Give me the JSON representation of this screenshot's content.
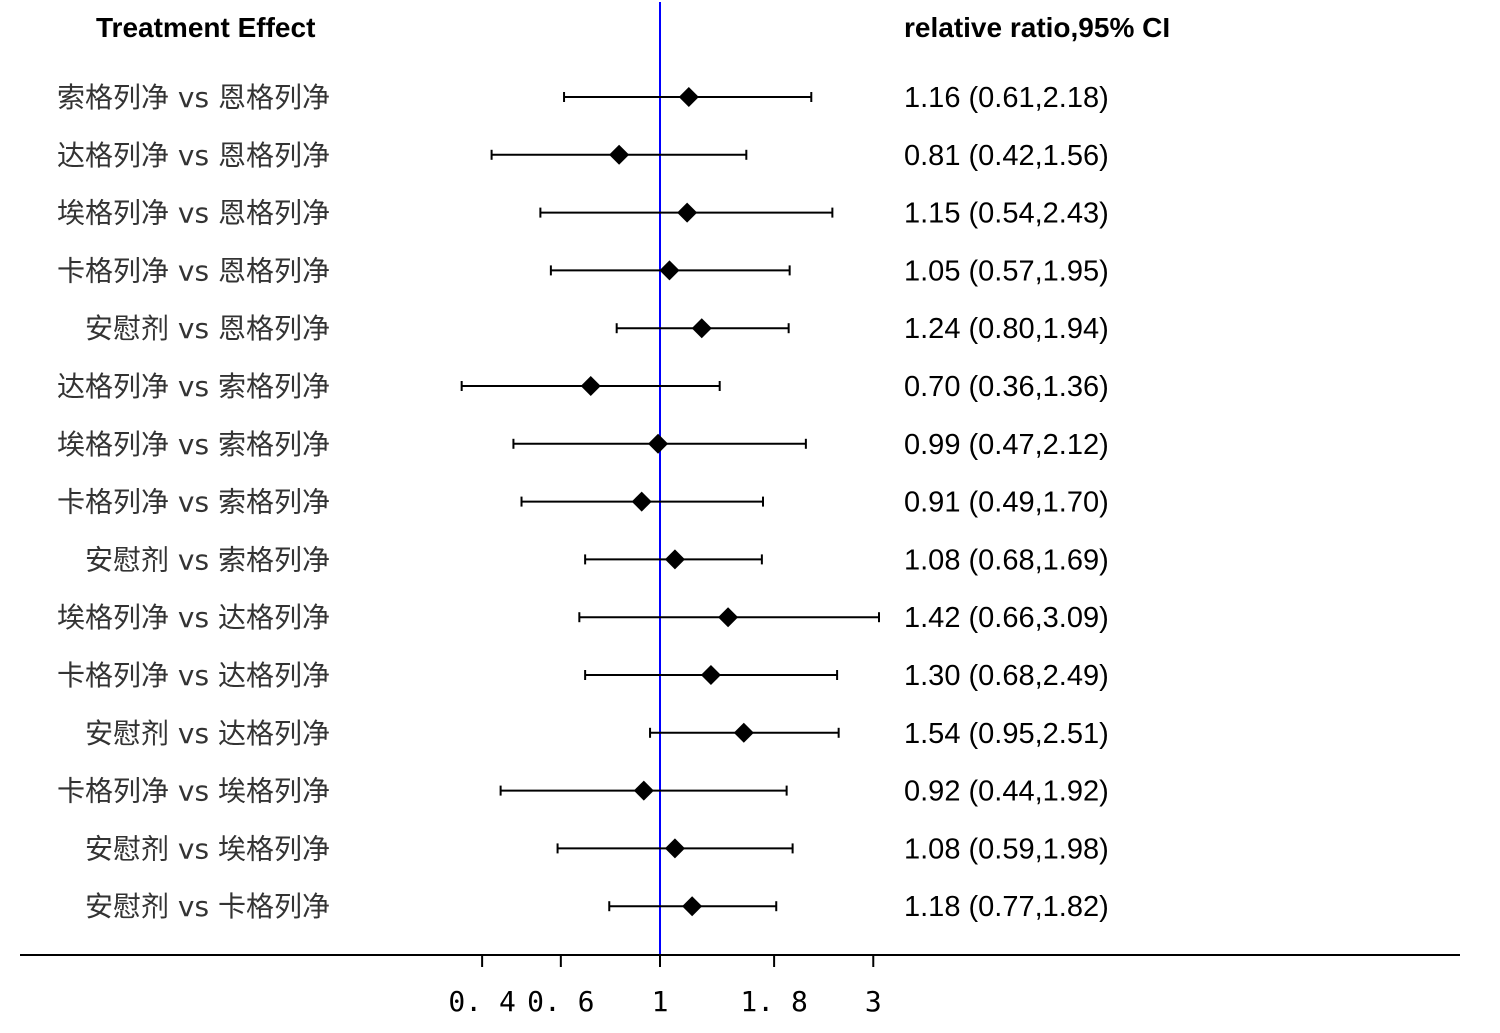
{
  "chart_data": {
    "type": "forest",
    "left_header": "Treatment Effect",
    "right_header": "relative ratio,95% CI",
    "reference_value": 1,
    "x_scale": "log",
    "x_ticks": [
      {
        "value": 0.4,
        "label": "0. 4"
      },
      {
        "value": 0.6,
        "label": "0. 6"
      },
      {
        "value": 1,
        "label": "1"
      },
      {
        "value": 1.8,
        "label": "1. 8"
      },
      {
        "value": 3,
        "label": "3"
      }
    ],
    "rows": [
      {
        "label": "索格列净 vs 恩格列净",
        "estimate": 1.16,
        "lower": 0.61,
        "upper": 2.18,
        "ci_text": "1.16 (0.61,2.18)"
      },
      {
        "label": "达格列净 vs 恩格列净",
        "estimate": 0.81,
        "lower": 0.42,
        "upper": 1.56,
        "ci_text": "0.81 (0.42,1.56)"
      },
      {
        "label": "埃格列净 vs 恩格列净",
        "estimate": 1.15,
        "lower": 0.54,
        "upper": 2.43,
        "ci_text": "1.15 (0.54,2.43)"
      },
      {
        "label": "卡格列净 vs 恩格列净",
        "estimate": 1.05,
        "lower": 0.57,
        "upper": 1.95,
        "ci_text": "1.05 (0.57,1.95)"
      },
      {
        "label": "安慰剂 vs 恩格列净",
        "estimate": 1.24,
        "lower": 0.8,
        "upper": 1.94,
        "ci_text": "1.24 (0.80,1.94)"
      },
      {
        "label": "达格列净 vs 索格列净",
        "estimate": 0.7,
        "lower": 0.36,
        "upper": 1.36,
        "ci_text": "0.70 (0.36,1.36)"
      },
      {
        "label": "埃格列净 vs 索格列净",
        "estimate": 0.99,
        "lower": 0.47,
        "upper": 2.12,
        "ci_text": "0.99 (0.47,2.12)"
      },
      {
        "label": "卡格列净 vs 索格列净",
        "estimate": 0.91,
        "lower": 0.49,
        "upper": 1.7,
        "ci_text": "0.91 (0.49,1.70)"
      },
      {
        "label": "安慰剂 vs 索格列净",
        "estimate": 1.08,
        "lower": 0.68,
        "upper": 1.69,
        "ci_text": "1.08 (0.68,1.69)"
      },
      {
        "label": "埃格列净 vs 达格列净",
        "estimate": 1.42,
        "lower": 0.66,
        "upper": 3.09,
        "ci_text": "1.42 (0.66,3.09)"
      },
      {
        "label": "卡格列净 vs 达格列净",
        "estimate": 1.3,
        "lower": 0.68,
        "upper": 2.49,
        "ci_text": "1.30 (0.68,2.49)"
      },
      {
        "label": "安慰剂 vs 达格列净",
        "estimate": 1.54,
        "lower": 0.95,
        "upper": 2.51,
        "ci_text": "1.54 (0.95,2.51)"
      },
      {
        "label": "卡格列净 vs 埃格列净",
        "estimate": 0.92,
        "lower": 0.44,
        "upper": 1.92,
        "ci_text": "0.92 (0.44,1.92)"
      },
      {
        "label": "安慰剂 vs 埃格列净",
        "estimate": 1.08,
        "lower": 0.59,
        "upper": 1.98,
        "ci_text": "1.08 (0.59,1.98)"
      },
      {
        "label": "安慰剂 vs 卡格列净",
        "estimate": 1.18,
        "lower": 0.77,
        "upper": 1.82,
        "ci_text": "1.18 (0.77,1.82)"
      }
    ],
    "colors": {
      "reference_line": "#0000ff",
      "marks": "#000000"
    }
  }
}
